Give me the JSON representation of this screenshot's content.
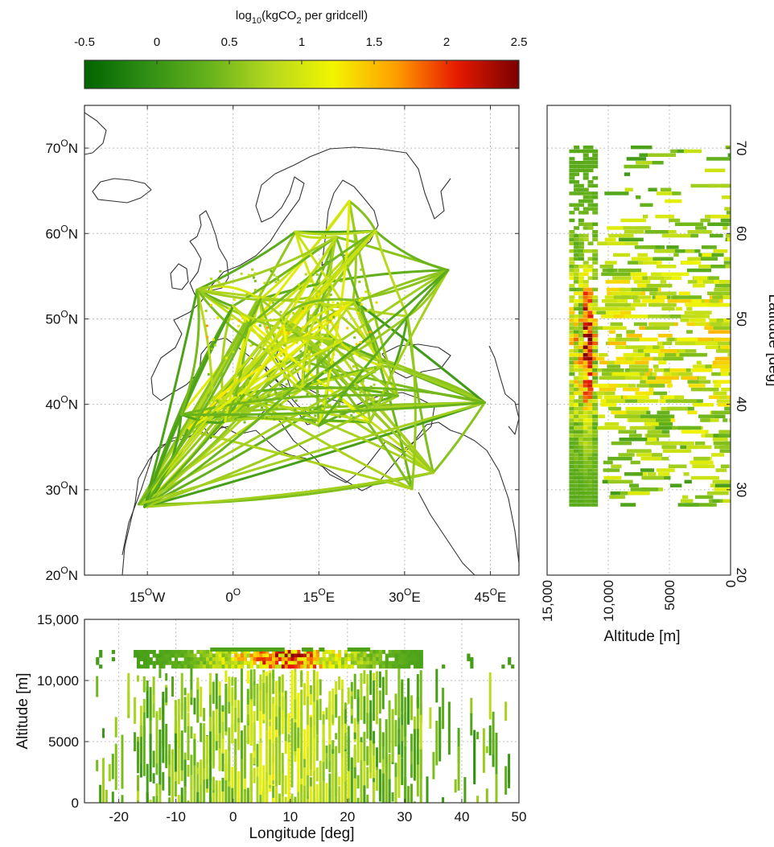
{
  "colorbar": {
    "title_prefix": "log",
    "title_sub1": "10",
    "title_mid": "(kgCO",
    "title_sub2": "2",
    "title_suffix": " per gridcell)",
    "ticks": [
      "-0.5",
      "0",
      "0.5",
      "1",
      "1.5",
      "2",
      "2.5"
    ],
    "range": [
      -0.5,
      2.5
    ],
    "colors": [
      "#006400",
      "#2f8f14",
      "#66b21c",
      "#b5d81e",
      "#f2f500",
      "#ffa000",
      "#e61a00",
      "#7a0000"
    ]
  },
  "chart_data": [
    {
      "type": "heatmap",
      "panel": "map",
      "description_of_marks": "flight tracks over Europe colored by CO2 emission per gridcell",
      "x_range": [
        -26,
        50
      ],
      "y_range": [
        20,
        75
      ],
      "x_ticks": [
        {
          "value": -15,
          "num": "15",
          "sup": "O",
          "hemi": "W"
        },
        {
          "value": 0,
          "num": "0",
          "sup": "O",
          "hemi": ""
        },
        {
          "value": 15,
          "num": "15",
          "sup": "O",
          "hemi": "E"
        },
        {
          "value": 30,
          "num": "30",
          "sup": "O",
          "hemi": "E"
        },
        {
          "value": 45,
          "num": "45",
          "sup": "O",
          "hemi": "E"
        }
      ],
      "y_ticks": [
        {
          "value": 20,
          "num": "20",
          "sup": "O",
          "hemi": "N"
        },
        {
          "value": 30,
          "num": "30",
          "sup": "O",
          "hemi": "N"
        },
        {
          "value": 40,
          "num": "40",
          "sup": "O",
          "hemi": "N"
        },
        {
          "value": 50,
          "num": "50",
          "sup": "O",
          "hemi": "N"
        },
        {
          "value": 60,
          "num": "60",
          "sup": "O",
          "hemi": "N"
        },
        {
          "value": 70,
          "num": "70",
          "sup": "O",
          "hemi": "N"
        }
      ],
      "grid": true
    },
    {
      "type": "heatmap",
      "panel": "latitude-altitude",
      "x_label": "Altitude [m]",
      "y_label": "Latitude [deg]",
      "x_range": [
        15000,
        0
      ],
      "y_range": [
        20,
        75
      ],
      "x_ticks": [
        {
          "value": 15000,
          "label": "15,000"
        },
        {
          "value": 10000,
          "label": "10,000"
        },
        {
          "value": 5000,
          "label": "5000"
        },
        {
          "value": 0,
          "label": "0"
        }
      ],
      "y_ticks": [
        {
          "value": 20,
          "label": "20"
        },
        {
          "value": 30,
          "label": "30"
        },
        {
          "value": 40,
          "label": "40"
        },
        {
          "value": 50,
          "label": "50"
        },
        {
          "value": 60,
          "label": "60"
        },
        {
          "value": 70,
          "label": "70"
        }
      ],
      "grid": true
    },
    {
      "type": "heatmap",
      "panel": "altitude-longitude",
      "x_label": "Longitude [deg]",
      "y_label": "Altitude [m]",
      "x_range": [
        -26,
        50
      ],
      "y_range": [
        0,
        15000
      ],
      "x_ticks": [
        {
          "value": -20,
          "label": "-20"
        },
        {
          "value": -10,
          "label": "-10"
        },
        {
          "value": 0,
          "label": "0"
        },
        {
          "value": 10,
          "label": "10"
        },
        {
          "value": 20,
          "label": "20"
        },
        {
          "value": 30,
          "label": "30"
        },
        {
          "value": 40,
          "label": "40"
        },
        {
          "value": 50,
          "label": "50"
        }
      ],
      "y_ticks": [
        {
          "value": 0,
          "label": "0"
        },
        {
          "value": 5000,
          "label": "5000"
        },
        {
          "value": 10000,
          "label": "10,000"
        },
        {
          "value": 15000,
          "label": "15,000"
        }
      ],
      "grid": true
    }
  ]
}
